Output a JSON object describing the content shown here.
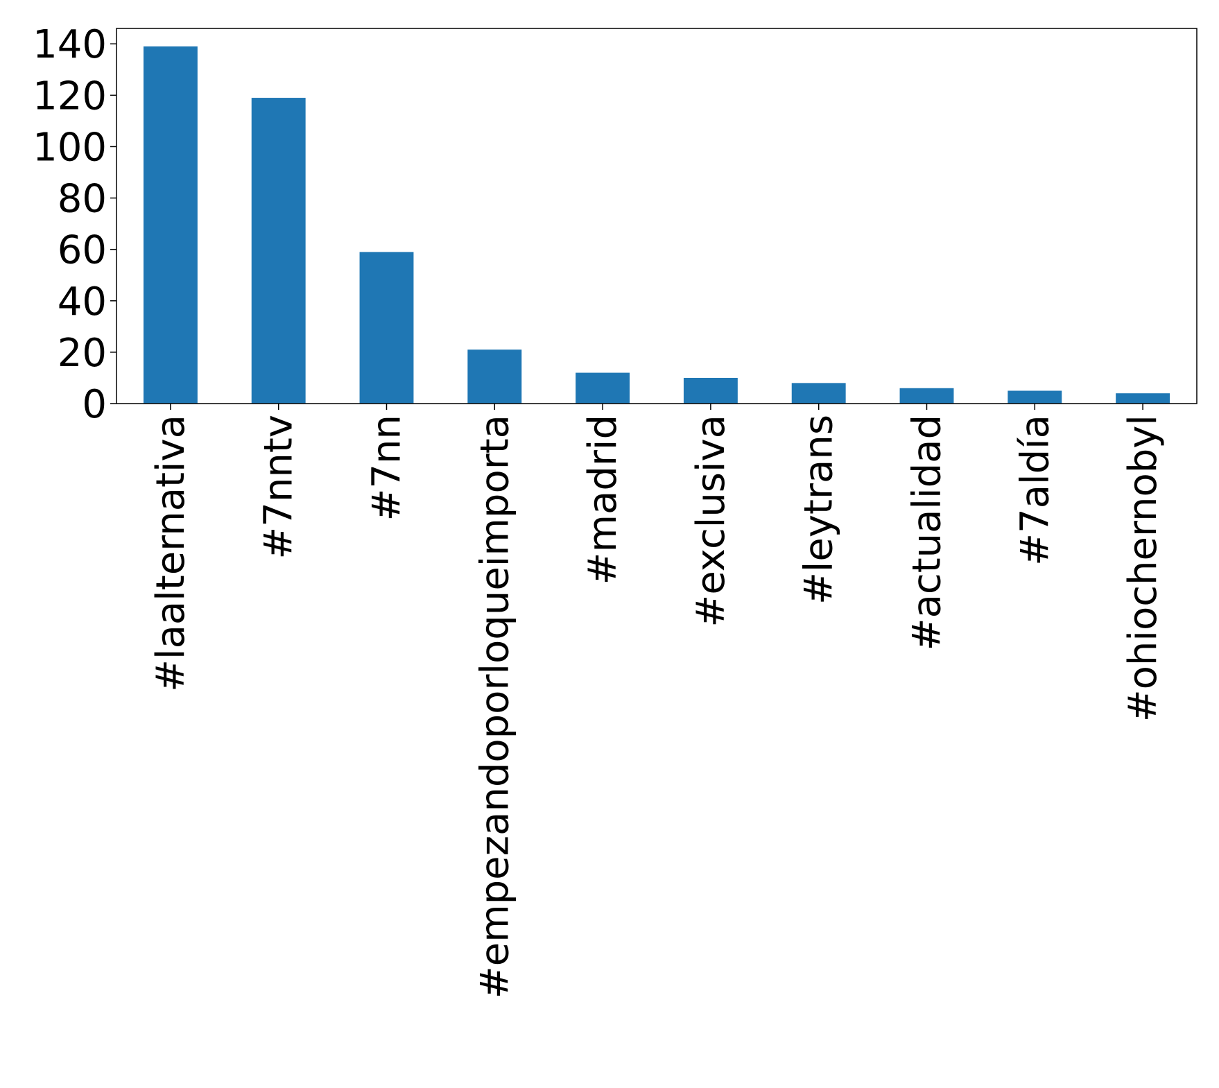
{
  "chart_data": {
    "type": "bar",
    "title": "",
    "xlabel": "",
    "ylabel": "",
    "categories": [
      "#laalternativa",
      "#7nntv",
      "#7nn",
      "#empezandoporloqueimporta",
      "#madrid",
      "#exclusiva",
      "#leytrans",
      "#actualidad",
      "#7aldía",
      "#ohiochernobyl"
    ],
    "values": [
      139,
      119,
      59,
      21,
      12,
      10,
      8,
      6,
      5,
      4
    ],
    "ylim": [
      0,
      146
    ],
    "yticks": [
      0,
      20,
      40,
      60,
      80,
      100,
      120,
      140
    ],
    "ytick_labels": [
      "0",
      "20",
      "40",
      "60",
      "80",
      "100",
      "120",
      "140"
    ],
    "bar_color": "#1f77b4",
    "grid": false,
    "legend": "none"
  }
}
